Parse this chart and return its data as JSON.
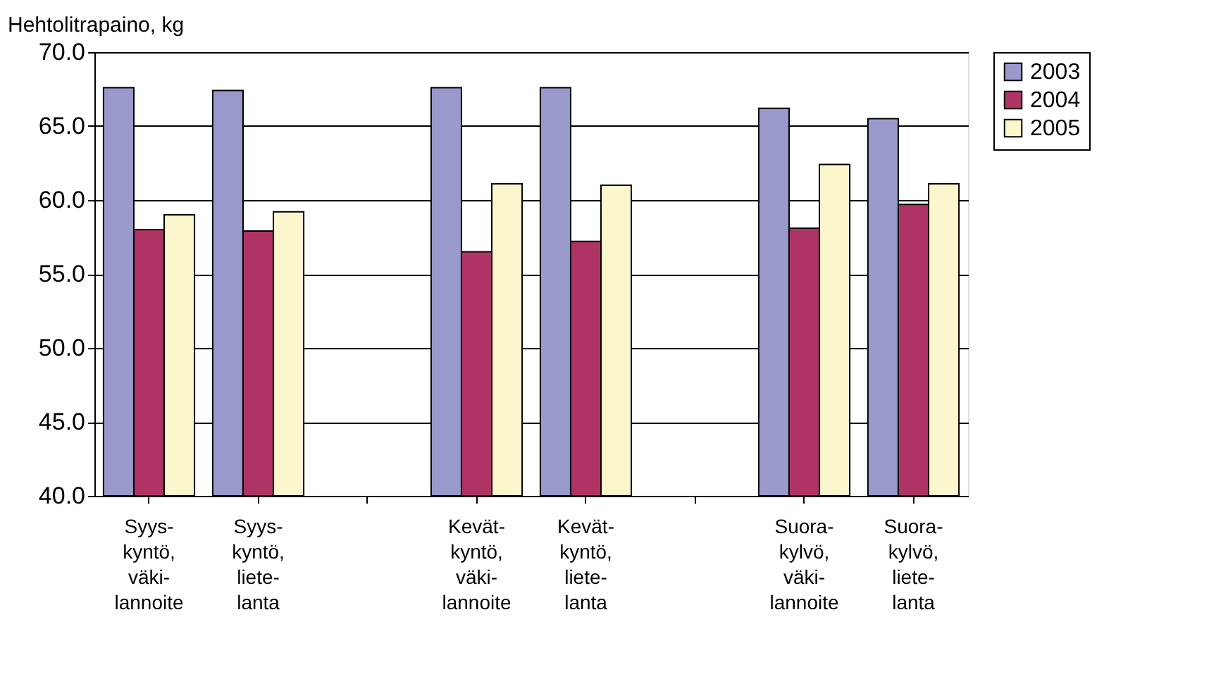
{
  "chart_data": {
    "type": "bar",
    "ylabel": "Hehtolitrapaino, kg",
    "categories": [
      "Syys-\nkyntö,\nväki-\nlannoite",
      "Syys-\nkyntö,\nliete-\nlanta",
      null,
      "Kevät-\nkyntö,\nväki-\nlannoite",
      "Kevät-\nkyntö,\nliete-\nlanta",
      null,
      "Suora-\nkylvö,\nväki-\nlannoite",
      "Suora-\nkylvö,\nliete-\nlanta"
    ],
    "series": [
      {
        "name": "2003",
        "color": "#9999cc",
        "values": [
          67.6,
          67.4,
          null,
          67.6,
          67.6,
          null,
          66.2,
          65.5
        ]
      },
      {
        "name": "2004",
        "color": "#b03366",
        "values": [
          58.0,
          57.9,
          null,
          56.5,
          57.2,
          null,
          58.1,
          59.7
        ]
      },
      {
        "name": "2005",
        "color": "#fcf6cc",
        "values": [
          59.0,
          59.2,
          null,
          61.1,
          61.0,
          null,
          62.4,
          61.1
        ]
      }
    ],
    "ylim": [
      40,
      70
    ],
    "yticks": [
      {
        "value": 40,
        "label": "40.0"
      },
      {
        "value": 45,
        "label": "45.0"
      },
      {
        "value": 50,
        "label": "50.0"
      },
      {
        "value": 55,
        "label": "55.0"
      },
      {
        "value": 60,
        "label": "60.0"
      },
      {
        "value": 65,
        "label": "65.0"
      },
      {
        "value": 70,
        "label": "70.0"
      }
    ],
    "grid": "y",
    "legend": "right"
  }
}
